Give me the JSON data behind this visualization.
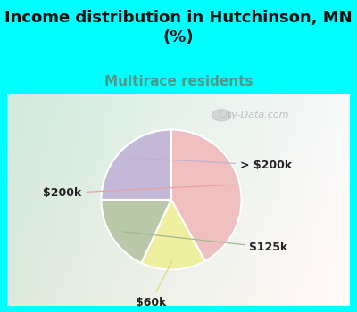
{
  "title": "Income distribution in Hutchinson, MN\n(%)",
  "subtitle": "Multirace residents",
  "title_fontsize": 13,
  "subtitle_fontsize": 11,
  "title_color": "#111111",
  "subtitle_color": "#4a9a8a",
  "background_color": "#00ffff",
  "slices": [
    {
      "label": "> $200k",
      "value": 25,
      "color": "#c4b8d8"
    },
    {
      "label": "$125k",
      "value": 18,
      "color": "#b8c8a8"
    },
    {
      "label": "$60k",
      "value": 15,
      "color": "#eef0a0"
    },
    {
      "label": "$200k",
      "value": 42,
      "color": "#f0c0c0"
    }
  ],
  "label_fontsize": 9,
  "label_color": "#222222",
  "watermark": "City-Data.com",
  "startangle": 90
}
